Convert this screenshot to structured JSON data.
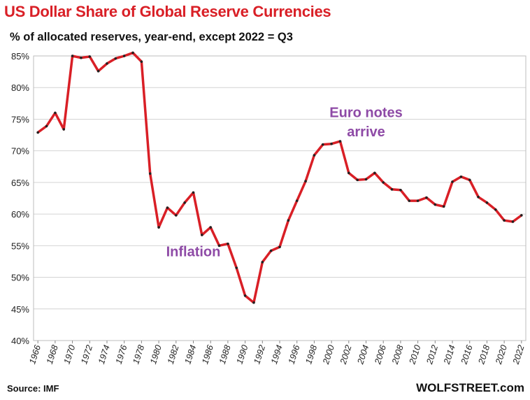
{
  "chart_data": {
    "type": "line",
    "title": "US Dollar Share of Global Reserve Currencies",
    "subtitle": "% of allocated reserves, year-end, except 2022 = Q3",
    "x": [
      1966,
      1967,
      1968,
      1969,
      1970,
      1971,
      1972,
      1973,
      1974,
      1975,
      1976,
      1977,
      1978,
      1979,
      1980,
      1981,
      1982,
      1983,
      1984,
      1985,
      1986,
      1987,
      1988,
      1989,
      1990,
      1991,
      1992,
      1993,
      1994,
      1995,
      1996,
      1997,
      1998,
      1999,
      2000,
      2001,
      2002,
      2003,
      2004,
      2005,
      2006,
      2007,
      2008,
      2009,
      2010,
      2011,
      2012,
      2013,
      2014,
      2015,
      2016,
      2017,
      2018,
      2019,
      2020,
      2021,
      2022
    ],
    "y": [
      72.9,
      73.9,
      76.0,
      73.4,
      85.0,
      84.7,
      84.9,
      82.6,
      83.8,
      84.6,
      85.0,
      85.5,
      84.1,
      66.4,
      57.9,
      61.0,
      59.8,
      61.8,
      63.4,
      56.7,
      57.9,
      55.0,
      55.3,
      51.5,
      47.1,
      46.0,
      52.4,
      54.2,
      54.8,
      59.0,
      62.1,
      65.2,
      69.3,
      71.0,
      71.1,
      71.5,
      66.5,
      65.4,
      65.5,
      66.5,
      65.0,
      63.9,
      63.8,
      62.1,
      62.1,
      62.6,
      61.5,
      61.2,
      65.1,
      65.9,
      65.4,
      62.7,
      61.8,
      60.7,
      59.0,
      58.8,
      59.8
    ],
    "ylim": [
      40,
      85
    ],
    "yticks": [
      "40%",
      "45%",
      "50%",
      "55%",
      "60%",
      "65%",
      "70%",
      "75%",
      "80%",
      "85%"
    ],
    "ytick_values": [
      40,
      45,
      50,
      55,
      60,
      65,
      70,
      75,
      80,
      85
    ],
    "xticks": [
      "1966",
      "1968",
      "1970",
      "1972",
      "1974",
      "1976",
      "1978",
      "1980",
      "1982",
      "1984",
      "1986",
      "1988",
      "1990",
      "1992",
      "1994",
      "1996",
      "1998",
      "2000",
      "2002",
      "2004",
      "2006",
      "2008",
      "2010",
      "2012",
      "2014",
      "2016",
      "2018",
      "2020",
      "2022"
    ],
    "xtick_values": [
      1966,
      1968,
      1970,
      1972,
      1974,
      1976,
      1978,
      1980,
      1982,
      1984,
      1986,
      1988,
      1990,
      1992,
      1994,
      1996,
      1998,
      2000,
      2002,
      2004,
      2006,
      2008,
      2010,
      2012,
      2014,
      2016,
      2018,
      2020,
      2022
    ],
    "annotations": [
      {
        "text": "Inflation",
        "year": 1984,
        "value": 53.3
      },
      {
        "text": "Euro notes",
        "year": 2004,
        "value": 75.3
      },
      {
        "text": "arrive",
        "year": 2004,
        "value": 72.3
      }
    ],
    "line_color": "#d91f26",
    "annotation_color": "#8e4aa6",
    "grid": true
  },
  "footer": {
    "source": "Source: IMF",
    "brand": "WOLFSTREET.com"
  }
}
